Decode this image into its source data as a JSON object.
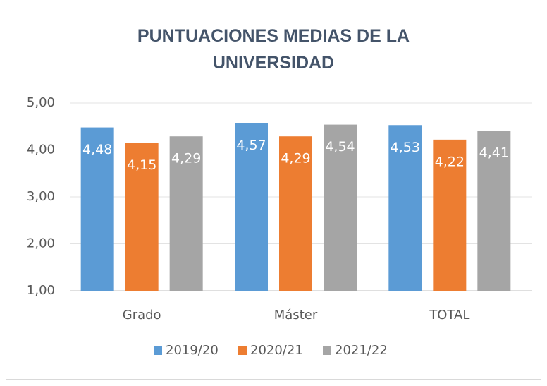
{
  "chart_data": {
    "type": "bar",
    "title": "PUNTUACIONES MEDIAS DE LA UNIVERSIDAD",
    "categories": [
      "Grado",
      "Máster",
      "TOTAL"
    ],
    "series": [
      {
        "name": "2019/20",
        "color": "#5b9bd5",
        "values": [
          4.48,
          4.57,
          4.53
        ],
        "value_labels": [
          "4,48",
          "4,57",
          "4,53"
        ]
      },
      {
        "name": "2020/21",
        "color": "#ed7d31",
        "values": [
          4.15,
          4.29,
          4.22
        ],
        "value_labels": [
          "4,15",
          "4,29",
          "4,22"
        ]
      },
      {
        "name": "2021/22",
        "color": "#a5a5a5",
        "values": [
          4.29,
          4.54,
          4.41
        ],
        "value_labels": [
          "4,29",
          "4,54",
          "4,41"
        ]
      }
    ],
    "ylim": [
      1,
      5
    ],
    "yticks": [
      {
        "value": 1,
        "label": "1,00"
      },
      {
        "value": 2,
        "label": "2,00"
      },
      {
        "value": 3,
        "label": "3,00"
      },
      {
        "value": 4,
        "label": "4,00"
      },
      {
        "value": 5,
        "label": "5,00"
      }
    ],
    "grid": true,
    "legend": "bottom"
  }
}
